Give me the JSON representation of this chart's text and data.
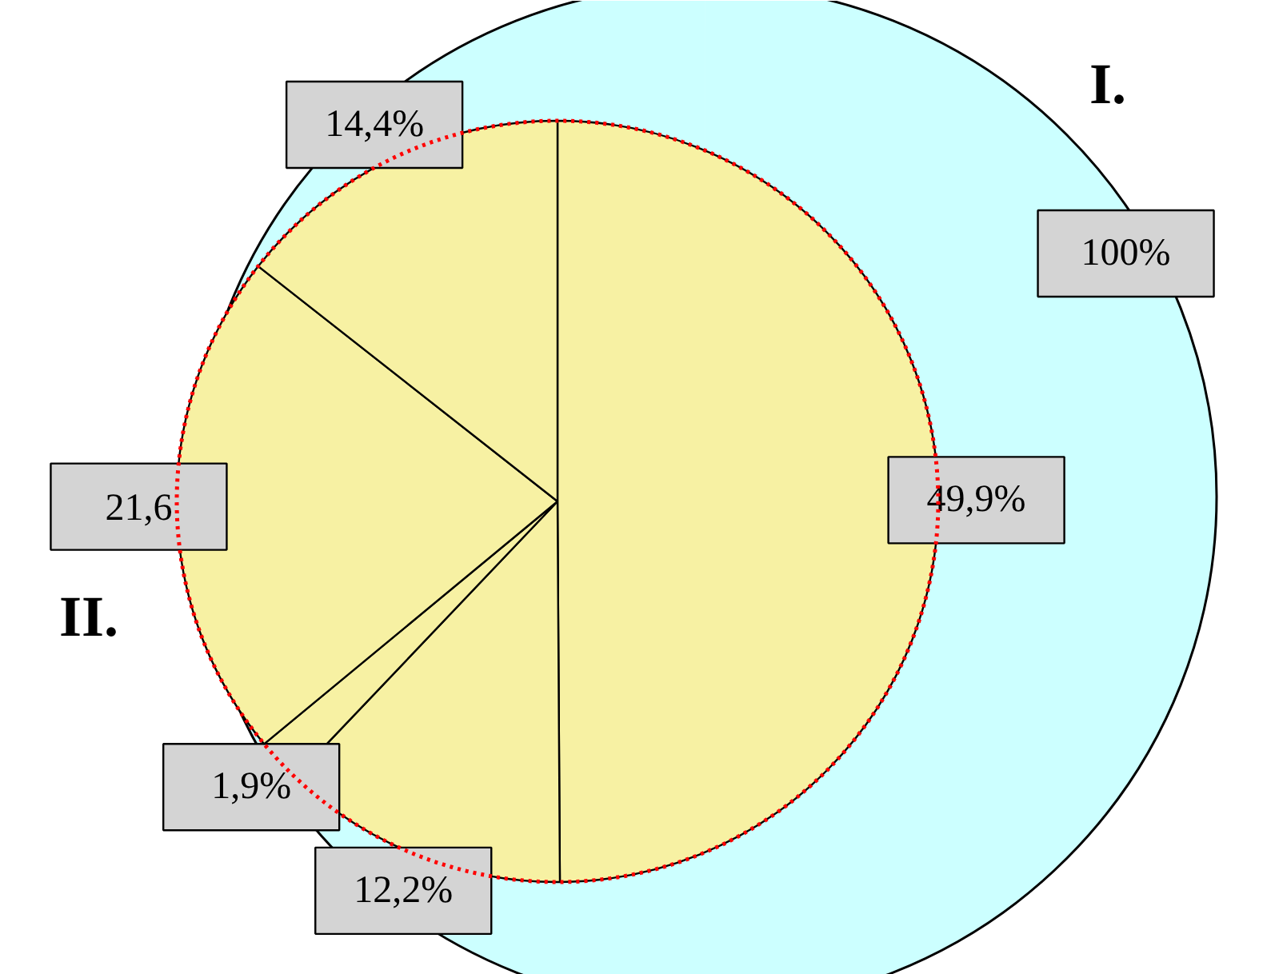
{
  "chart_data": [
    {
      "type": "pie",
      "title": "I.",
      "categories": [
        null
      ],
      "values": [
        100
      ],
      "colors": [
        "#ccffff"
      ],
      "value_labels": [
        "100%"
      ]
    },
    {
      "type": "pie",
      "title": "II.",
      "categories": [
        null,
        null,
        null,
        null,
        null
      ],
      "values": [
        49.9,
        12.2,
        1.9,
        21.6,
        14.4
      ],
      "colors": [
        "#f7f1a3",
        "#f7f1a3",
        "#f7f1a3",
        "#f7f1a3",
        "#f7f1a3"
      ],
      "value_labels": [
        "49,9%",
        "12,2%",
        "1,9%",
        "21,6",
        "14,4%"
      ]
    }
  ]
}
